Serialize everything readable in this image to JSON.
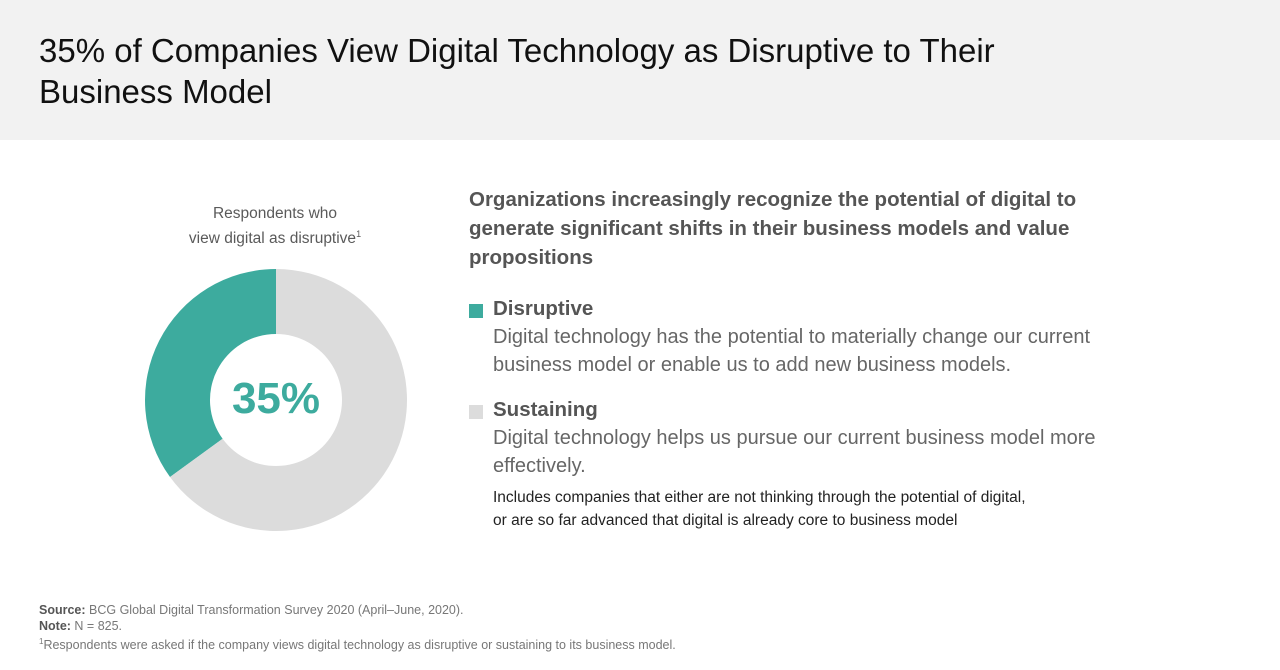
{
  "title": "35% of Companies View Digital Technology as Disruptive to Their Business Model",
  "chart_caption": {
    "line1": "Respondents who",
    "line2": "view digital as disruptive",
    "footnote_mark": "1"
  },
  "headline": "Organizations increasingly recognize the potential of digital to generate significant shifts in their business models and value propositions",
  "legend": {
    "disruptive": {
      "title": "Disruptive",
      "description": "Digital technology has the potential to materially change our current business model or enable us to add new business models."
    },
    "sustaining": {
      "title": "Sustaining",
      "description": "Digital technology helps us pursue our current business model more effectively.",
      "note_line1": "Includes companies that either are not thinking through the potential of digital,",
      "note_line2": "or are so far advanced that digital is already core to business model"
    }
  },
  "footer": {
    "source_label": "Source:",
    "source_text": " BCG Global Digital Transformation Survey 2020 (April–June, 2020).",
    "note_label": "Note:",
    "note_text": " N = 825.",
    "footnote_mark": "1",
    "footnote_text": "Respondents were asked if the company views digital technology as disruptive or sustaining to its business model."
  },
  "colors": {
    "disruptive": "#3dab9e",
    "sustaining": "#dcdcdc"
  },
  "chart_data": {
    "type": "pie",
    "categories": [
      "Disruptive",
      "Sustaining"
    ],
    "values": [
      35,
      65
    ],
    "unit": "%",
    "center_label": "35%"
  }
}
